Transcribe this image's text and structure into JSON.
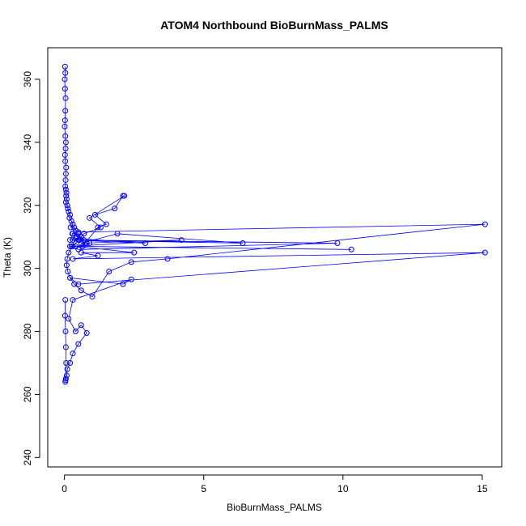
{
  "chart_data": {
    "type": "line",
    "title": "ATOM4 Northbound BioBurnMass_PALMS",
    "xlabel": "BioBurnMass_PALMS",
    "ylabel": "Theta (K)",
    "xlim": [
      -0.6,
      15.7
    ],
    "ylim": [
      237,
      370
    ],
    "xticks": [
      0,
      5,
      10,
      15
    ],
    "yticks": [
      240,
      260,
      280,
      300,
      320,
      340,
      360
    ],
    "grid": false,
    "legend": "none",
    "marker": "open-circle",
    "color": "#0000ff",
    "series": [
      {
        "name": "",
        "x": [
          0.02,
          0.03,
          0.01,
          0.02,
          0.04,
          0.03,
          0.02,
          0.01,
          0.03,
          0.05,
          0.04,
          0.02,
          0.03,
          0.06,
          0.05,
          0.04,
          0.03,
          0.05,
          0.07,
          0.06,
          0.08,
          0.05,
          0.1,
          0.12,
          0.15,
          0.2,
          0.18,
          0.25,
          0.3,
          0.22,
          0.35,
          0.4,
          0.28,
          0.5,
          0.45,
          0.6,
          0.7,
          0.55,
          0.8,
          0.9,
          0.65,
          1.2,
          1.5,
          1.1,
          1.8,
          2.1,
          2.15,
          0.9,
          1.3,
          0.7,
          0.5,
          0.3,
          0.15,
          0.1,
          0.08,
          0.12,
          0.2,
          0.35,
          0.6,
          1.0,
          1.6,
          2.4,
          3.7,
          15.1,
          0.5,
          0.3,
          0.2,
          2.9,
          0.4,
          0.25,
          4.2,
          0.6,
          1.9,
          6.4,
          0.3,
          9.8,
          0.5,
          0.2,
          10.3,
          0.4,
          2.5,
          0.6,
          1.2,
          0.3,
          15.1,
          0.5,
          0.2,
          2.1,
          2.4,
          0.3,
          0.15,
          0.4,
          0.6,
          0.8,
          0.5,
          0.3,
          0.2,
          0.1,
          0.08,
          0.05,
          0.04,
          0.03,
          0.06,
          0.05,
          0.04,
          0.02,
          0.03
        ],
        "y": [
          364,
          362,
          360,
          357,
          354,
          350,
          347,
          345,
          342,
          340,
          338,
          336,
          334,
          332,
          330,
          328,
          326,
          325,
          324,
          323,
          322,
          321,
          320,
          319,
          318,
          317,
          316,
          315,
          314,
          313,
          313,
          312,
          311,
          311,
          310,
          310,
          309,
          309,
          308,
          308,
          307,
          313,
          314,
          317,
          319,
          323,
          323,
          316,
          313,
          311,
          309,
          307,
          305,
          303,
          301,
          299,
          297,
          295,
          293,
          291,
          299,
          302,
          303,
          314,
          311.5,
          311,
          309,
          308,
          309.5,
          307,
          309,
          308,
          311,
          308,
          309,
          308,
          306,
          307,
          306,
          307,
          305,
          305,
          304,
          303,
          305,
          295,
          297,
          295,
          296.5,
          290,
          284,
          280,
          282,
          279.5,
          276,
          273,
          270,
          268,
          266,
          265,
          264.5,
          264,
          270,
          275,
          280,
          285,
          290
        ]
      }
    ]
  }
}
